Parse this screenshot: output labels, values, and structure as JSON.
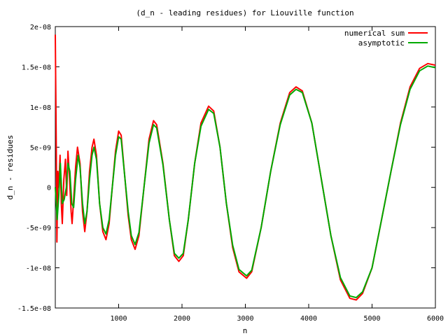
{
  "chart_data": {
    "type": "line",
    "title": "(d_n - leading residues) for Liouville function",
    "xlabel": "n",
    "ylabel": "d_n - residues",
    "xlim": [
      0,
      6000
    ],
    "ylim": [
      -1.5e-08,
      2e-08
    ],
    "xticks": [
      1000,
      2000,
      3000,
      4000,
      5000,
      6000
    ],
    "xtick_labels": [
      "1000",
      "2000",
      "3000",
      "4000",
      "5000",
      "6000"
    ],
    "yticks": [
      -1.5e-08,
      -1e-08,
      -5e-09,
      0,
      5e-09,
      1e-08,
      1.5e-08,
      2e-08
    ],
    "ytick_labels": [
      "-1.5e-08",
      "-1e-08",
      "-5e-09",
      "0",
      "5e-09",
      "1e-08",
      "1.5e-08",
      "2e-08"
    ],
    "grid": false,
    "legend_position": "top-right",
    "series": [
      {
        "name": "numerical sum",
        "color": "#ff0000",
        "points": [
          [
            0,
            1.9e-08
          ],
          [
            15,
            5e-09
          ],
          [
            25,
            -6.8e-09
          ],
          [
            40,
            2e-09
          ],
          [
            55,
            0
          ],
          [
            75,
            4e-09
          ],
          [
            95,
            -2e-09
          ],
          [
            110,
            -4.5e-09
          ],
          [
            135,
            1e-09
          ],
          [
            160,
            3.5e-09
          ],
          [
            180,
            -1e-09
          ],
          [
            200,
            4.5e-09
          ],
          [
            225,
            1e-09
          ],
          [
            250,
            -3e-09
          ],
          [
            265,
            -4.5e-09
          ],
          [
            290,
            -1.5e-09
          ],
          [
            320,
            2.5e-09
          ],
          [
            350,
            5e-09
          ],
          [
            390,
            3e-09
          ],
          [
            430,
            -3e-09
          ],
          [
            465,
            -5.5e-09
          ],
          [
            500,
            -3e-09
          ],
          [
            540,
            2e-09
          ],
          [
            580,
            5e-09
          ],
          [
            610,
            6e-09
          ],
          [
            650,
            4e-09
          ],
          [
            700,
            -2e-09
          ],
          [
            750,
            -5.5e-09
          ],
          [
            800,
            -6.5e-09
          ],
          [
            850,
            -4.5e-09
          ],
          [
            900,
            0
          ],
          [
            950,
            4.5e-09
          ],
          [
            1000,
            7e-09
          ],
          [
            1040,
            6.5e-09
          ],
          [
            1100,
            1e-09
          ],
          [
            1150,
            -3.5e-09
          ],
          [
            1200,
            -6.5e-09
          ],
          [
            1260,
            -7.7e-09
          ],
          [
            1320,
            -6e-09
          ],
          [
            1400,
            0
          ],
          [
            1480,
            6e-09
          ],
          [
            1550,
            8.3e-09
          ],
          [
            1600,
            7.8e-09
          ],
          [
            1700,
            3e-09
          ],
          [
            1800,
            -4e-09
          ],
          [
            1880,
            -8.5e-09
          ],
          [
            1950,
            -9.2e-09
          ],
          [
            2020,
            -8.5e-09
          ],
          [
            2100,
            -4e-09
          ],
          [
            2200,
            3e-09
          ],
          [
            2300,
            8e-09
          ],
          [
            2420,
            1.01e-08
          ],
          [
            2500,
            9.5e-09
          ],
          [
            2600,
            5e-09
          ],
          [
            2700,
            -2e-09
          ],
          [
            2800,
            -7.5e-09
          ],
          [
            2900,
            -1.05e-08
          ],
          [
            3020,
            -1.13e-08
          ],
          [
            3100,
            -1.05e-08
          ],
          [
            3250,
            -5e-09
          ],
          [
            3400,
            2e-09
          ],
          [
            3550,
            8e-09
          ],
          [
            3700,
            1.18e-08
          ],
          [
            3800,
            1.25e-08
          ],
          [
            3900,
            1.2e-08
          ],
          [
            4050,
            8e-09
          ],
          [
            4200,
            1e-09
          ],
          [
            4350,
            -6e-09
          ],
          [
            4500,
            -1.15e-08
          ],
          [
            4650,
            -1.38e-08
          ],
          [
            4750,
            -1.4e-08
          ],
          [
            4850,
            -1.32e-08
          ],
          [
            5000,
            -1e-08
          ],
          [
            5150,
            -4e-09
          ],
          [
            5300,
            2e-09
          ],
          [
            5450,
            8e-09
          ],
          [
            5600,
            1.25e-08
          ],
          [
            5750,
            1.48e-08
          ],
          [
            5880,
            1.54e-08
          ],
          [
            6000,
            1.52e-08
          ]
        ]
      },
      {
        "name": "asymptotic",
        "color": "#00aa00",
        "points": [
          [
            0,
            0
          ],
          [
            30,
            -4e-09
          ],
          [
            55,
            -1e-09
          ],
          [
            80,
            3e-09
          ],
          [
            110,
            -2e-09
          ],
          [
            140,
            -1.5e-09
          ],
          [
            175,
            0
          ],
          [
            200,
            3e-09
          ],
          [
            230,
            2e-09
          ],
          [
            260,
            -2e-09
          ],
          [
            290,
            -2.5e-09
          ],
          [
            320,
            1e-09
          ],
          [
            360,
            4e-09
          ],
          [
            390,
            2.5e-09
          ],
          [
            430,
            -2e-09
          ],
          [
            465,
            -4.5e-09
          ],
          [
            500,
            -3e-09
          ],
          [
            540,
            1e-09
          ],
          [
            580,
            4e-09
          ],
          [
            610,
            5e-09
          ],
          [
            650,
            3.5e-09
          ],
          [
            700,
            -2e-09
          ],
          [
            750,
            -5e-09
          ],
          [
            800,
            -5.8e-09
          ],
          [
            850,
            -4e-09
          ],
          [
            900,
            0
          ],
          [
            950,
            4e-09
          ],
          [
            1000,
            6.3e-09
          ],
          [
            1040,
            6e-09
          ],
          [
            1100,
            1e-09
          ],
          [
            1150,
            -3e-09
          ],
          [
            1200,
            -6e-09
          ],
          [
            1260,
            -7.1e-09
          ],
          [
            1320,
            -5.6e-09
          ],
          [
            1400,
            0
          ],
          [
            1480,
            5.5e-09
          ],
          [
            1550,
            7.8e-09
          ],
          [
            1600,
            7.4e-09
          ],
          [
            1700,
            2.8e-09
          ],
          [
            1800,
            -4e-09
          ],
          [
            1880,
            -8.2e-09
          ],
          [
            1950,
            -8.8e-09
          ],
          [
            2020,
            -8.2e-09
          ],
          [
            2100,
            -4e-09
          ],
          [
            2200,
            3e-09
          ],
          [
            2300,
            7.6e-09
          ],
          [
            2420,
            9.7e-09
          ],
          [
            2500,
            9.2e-09
          ],
          [
            2600,
            5e-09
          ],
          [
            2700,
            -2e-09
          ],
          [
            2800,
            -7.2e-09
          ],
          [
            2900,
            -1.02e-08
          ],
          [
            3020,
            -1.1e-08
          ],
          [
            3100,
            -1.03e-08
          ],
          [
            3250,
            -5e-09
          ],
          [
            3400,
            2e-09
          ],
          [
            3550,
            7.8e-09
          ],
          [
            3700,
            1.15e-08
          ],
          [
            3800,
            1.22e-08
          ],
          [
            3900,
            1.18e-08
          ],
          [
            4050,
            8e-09
          ],
          [
            4200,
            1e-09
          ],
          [
            4350,
            -6e-09
          ],
          [
            4500,
            -1.12e-08
          ],
          [
            4650,
            -1.35e-08
          ],
          [
            4750,
            -1.37e-08
          ],
          [
            4850,
            -1.3e-08
          ],
          [
            5000,
            -1e-08
          ],
          [
            5150,
            -4e-09
          ],
          [
            5300,
            2e-09
          ],
          [
            5450,
            7.8e-09
          ],
          [
            5600,
            1.22e-08
          ],
          [
            5750,
            1.45e-08
          ],
          [
            5880,
            1.51e-08
          ],
          [
            6000,
            1.49e-08
          ]
        ]
      }
    ]
  }
}
